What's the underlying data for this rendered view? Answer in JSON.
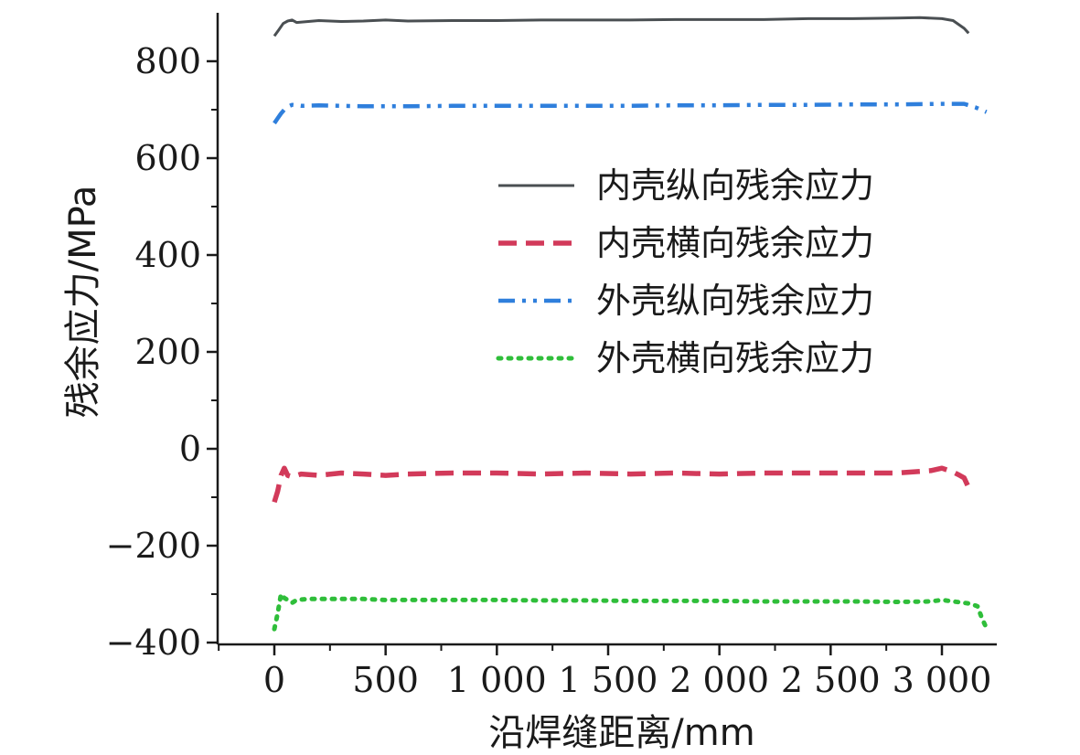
{
  "chart_data": {
    "type": "line",
    "title": "",
    "xlabel": "沿焊缝距离/mm",
    "ylabel": "残余应力/MPa",
    "xlim": [
      -250,
      3250
    ],
    "ylim": [
      -400,
      900
    ],
    "x_ticks": [
      0,
      500,
      1000,
      1500,
      2000,
      2500,
      3000
    ],
    "x_tick_labels": [
      "0",
      "500",
      "1 000",
      "1 500",
      "2 000",
      "2 500",
      "3 000"
    ],
    "y_ticks": [
      -400,
      -200,
      0,
      200,
      400,
      600,
      800
    ],
    "y_tick_labels": [
      "−400",
      "−200",
      "0",
      "200",
      "400",
      "600",
      "800"
    ],
    "grid": false,
    "legend_position": "right",
    "series": [
      {
        "name": "内壳纵向残余应力",
        "color": "#4a4f52",
        "style": "solid",
        "x": [
          0,
          20,
          40,
          60,
          80,
          100,
          200,
          300,
          400,
          500,
          600,
          800,
          1000,
          1200,
          1400,
          1600,
          1800,
          2000,
          2200,
          2400,
          2600,
          2800,
          2900,
          3000,
          3050,
          3100,
          3120
        ],
        "y": [
          852,
          865,
          878,
          883,
          885,
          880,
          884,
          882,
          883,
          885,
          883,
          884,
          884,
          885,
          885,
          885,
          886,
          886,
          886,
          888,
          888,
          889,
          890,
          888,
          884,
          868,
          858
        ]
      },
      {
        "name": "内壳横向残余应力",
        "color": "#d23a5a",
        "style": "dashed",
        "x": [
          0,
          15,
          30,
          45,
          60,
          80,
          120,
          200,
          300,
          400,
          500,
          600,
          800,
          1000,
          1200,
          1400,
          1600,
          1800,
          2000,
          2200,
          2400,
          2600,
          2800,
          2950,
          3000,
          3050,
          3080,
          3100,
          3120
        ],
        "y": [
          -110,
          -88,
          -55,
          -40,
          -55,
          -58,
          -52,
          -55,
          -50,
          -52,
          -55,
          -52,
          -50,
          -50,
          -52,
          -50,
          -52,
          -50,
          -52,
          -50,
          -50,
          -50,
          -50,
          -45,
          -40,
          -48,
          -55,
          -60,
          -80
        ]
      },
      {
        "name": "外壳纵向残余应力",
        "color": "#2f7fdc",
        "style": "dashdotdot",
        "x": [
          0,
          15,
          30,
          45,
          60,
          80,
          120,
          200,
          300,
          400,
          500,
          600,
          800,
          1000,
          1200,
          1400,
          1600,
          1800,
          2000,
          2200,
          2400,
          2600,
          2800,
          3000,
          3100,
          3150,
          3200
        ],
        "y": [
          672,
          682,
          692,
          700,
          706,
          710,
          708,
          709,
          708,
          707,
          707,
          707,
          708,
          708,
          708,
          708,
          708,
          709,
          709,
          710,
          710,
          711,
          711,
          712,
          712,
          705,
          695
        ]
      },
      {
        "name": "外壳横向残余应力",
        "color": "#2fbe3a",
        "style": "dotted",
        "x": [
          0,
          15,
          30,
          45,
          60,
          80,
          100,
          150,
          200,
          300,
          400,
          500,
          600,
          800,
          1000,
          1200,
          1400,
          1600,
          1800,
          2000,
          2200,
          2400,
          2600,
          2800,
          2950,
          3000,
          3050,
          3100,
          3130,
          3160,
          3180,
          3200
        ],
        "y": [
          -372,
          -340,
          -300,
          -308,
          -312,
          -318,
          -312,
          -310,
          -310,
          -310,
          -310,
          -312,
          -312,
          -312,
          -312,
          -313,
          -313,
          -314,
          -314,
          -314,
          -315,
          -315,
          -315,
          -316,
          -315,
          -312,
          -315,
          -318,
          -320,
          -325,
          -350,
          -370
        ]
      }
    ]
  }
}
